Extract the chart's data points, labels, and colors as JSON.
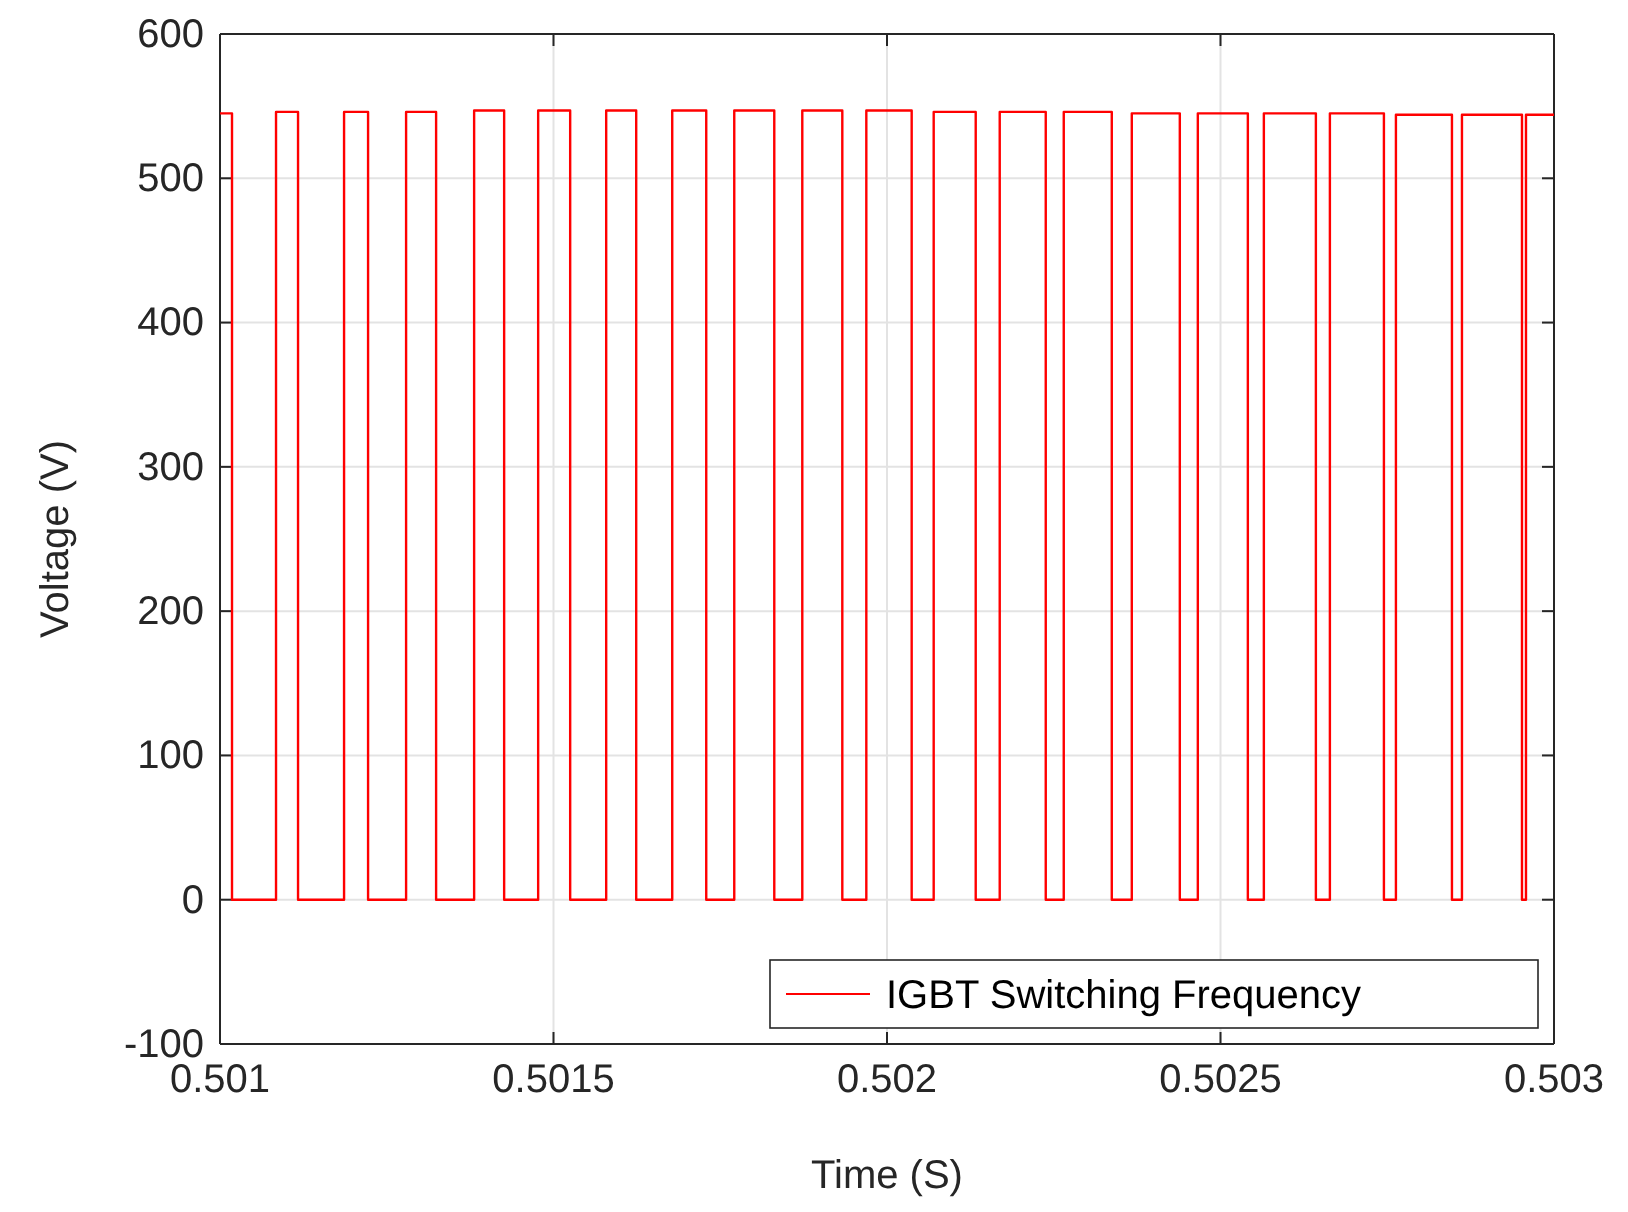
{
  "chart_data": {
    "type": "line",
    "xlabel": "Time (S)",
    "ylabel": "Voltage (V)",
    "xlim": [
      0.501,
      0.503
    ],
    "xticks": [
      0.501,
      0.5015,
      0.502,
      0.5025,
      0.503
    ],
    "ylim": [
      -100,
      600
    ],
    "yticks": [
      -100,
      0,
      100,
      200,
      300,
      400,
      500,
      600
    ],
    "grid": true,
    "legend": "bottom right",
    "marker": "none",
    "line_style": "solid",
    "series": [
      {
        "name": "IGBT Switching Frequency",
        "color": "#ff0000",
        "x": [
          0.501,
          0.501018,
          0.501018,
          0.501084,
          0.501084,
          0.501117,
          0.501117,
          0.501186,
          0.501186,
          0.501222,
          0.501222,
          0.501279,
          0.501279,
          0.501324,
          0.501324,
          0.501381,
          0.501381,
          0.501426,
          0.501426,
          0.501477,
          0.501477,
          0.501525,
          0.501525,
          0.501579,
          0.501579,
          0.501624,
          0.501624,
          0.501678,
          0.501678,
          0.501729,
          0.501729,
          0.501771,
          0.501771,
          0.501831,
          0.501831,
          0.501873,
          0.501873,
          0.501933,
          0.501933,
          0.501969,
          0.501969,
          0.502037,
          0.502037,
          0.50207,
          0.50207,
          0.502133,
          0.502133,
          0.502169,
          0.502169,
          0.502238,
          0.502238,
          0.502265,
          0.502265,
          0.502337,
          0.502337,
          0.502367,
          0.502367,
          0.502439,
          0.502439,
          0.502466,
          0.502466,
          0.502541,
          0.502541,
          0.502565,
          0.502565,
          0.502643,
          0.502643,
          0.502664,
          0.502664,
          0.502745,
          0.502745,
          0.502763,
          0.502763,
          0.502847,
          0.502847,
          0.502862,
          0.502862,
          0.502952,
          0.502952,
          0.502958,
          0.502958,
          0.503
        ],
        "values": [
          545,
          545,
          0,
          0,
          546,
          546,
          0,
          0,
          546,
          546,
          0,
          0,
          546,
          546,
          0,
          0,
          547,
          547,
          0,
          0,
          547,
          547,
          0,
          0,
          547,
          547,
          0,
          0,
          547,
          547,
          0,
          0,
          547,
          547,
          0,
          0,
          547,
          547,
          0,
          0,
          547,
          547,
          0,
          0,
          546,
          546,
          0,
          0,
          546,
          546,
          0,
          0,
          546,
          546,
          0,
          0,
          545,
          545,
          0,
          0,
          545,
          545,
          0,
          0,
          545,
          545,
          0,
          0,
          545,
          545,
          0,
          0,
          544,
          544,
          0,
          0,
          544,
          544,
          0,
          0,
          544,
          544
        ]
      }
    ]
  }
}
